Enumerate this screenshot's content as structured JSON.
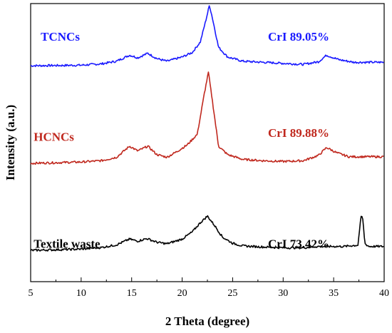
{
  "chart_data": {
    "type": "line",
    "xlabel": "2 Theta (degree)",
    "ylabel": "Intensity (a.u.)",
    "xlim": [
      5,
      40
    ],
    "xticks": [
      "5",
      "10",
      "15",
      "20",
      "25",
      "30",
      "35",
      "40"
    ],
    "y_axis_ticks": "none",
    "grid": false,
    "legend": "none (series labeled inline)",
    "series": [
      {
        "name": "TCNCs",
        "annotation": "CrI 89.05%",
        "color": "#1a1aff",
        "points": [
          [
            5,
            0.805
          ],
          [
            8,
            0.806
          ],
          [
            10,
            0.807
          ],
          [
            12,
            0.812
          ],
          [
            13.5,
            0.822
          ],
          [
            14.8,
            0.845
          ],
          [
            15.6,
            0.835
          ],
          [
            16.6,
            0.852
          ],
          [
            17.5,
            0.832
          ],
          [
            18.5,
            0.822
          ],
          [
            20,
            0.838
          ],
          [
            21,
            0.855
          ],
          [
            21.8,
            0.895
          ],
          [
            22.4,
            0.985
          ],
          [
            22.7,
            1.035
          ],
          [
            23.0,
            0.985
          ],
          [
            23.6,
            0.875
          ],
          [
            24.5,
            0.838
          ],
          [
            26,
            0.822
          ],
          [
            28,
            0.818
          ],
          [
            30,
            0.814
          ],
          [
            32,
            0.81
          ],
          [
            33.5,
            0.82
          ],
          [
            34.3,
            0.845
          ],
          [
            35.5,
            0.828
          ],
          [
            37,
            0.818
          ],
          [
            40,
            0.818
          ]
        ]
      },
      {
        "name": "HCNCs",
        "annotation": "CrI 89.88%",
        "color": "#c0281e",
        "points": [
          [
            5,
            0.435
          ],
          [
            8,
            0.438
          ],
          [
            10,
            0.44
          ],
          [
            12,
            0.445
          ],
          [
            13.5,
            0.458
          ],
          [
            14.8,
            0.5
          ],
          [
            15.6,
            0.482
          ],
          [
            16.6,
            0.5
          ],
          [
            17.5,
            0.468
          ],
          [
            18.5,
            0.458
          ],
          [
            19.5,
            0.48
          ],
          [
            20.5,
            0.505
          ],
          [
            21.5,
            0.545
          ],
          [
            22.2,
            0.7
          ],
          [
            22.6,
            0.78
          ],
          [
            23.0,
            0.67
          ],
          [
            23.6,
            0.5
          ],
          [
            24.5,
            0.468
          ],
          [
            26,
            0.45
          ],
          [
            28,
            0.445
          ],
          [
            30,
            0.442
          ],
          [
            32,
            0.445
          ],
          [
            33.5,
            0.465
          ],
          [
            34.3,
            0.495
          ],
          [
            35.3,
            0.475
          ],
          [
            36.5,
            0.46
          ],
          [
            40,
            0.46
          ]
        ]
      },
      {
        "name": "Textile waste",
        "annotation": "CrI 73.42%",
        "color": "#000000",
        "points": [
          [
            5,
            0.105
          ],
          [
            8,
            0.108
          ],
          [
            10,
            0.11
          ],
          [
            12,
            0.116
          ],
          [
            13.5,
            0.126
          ],
          [
            14.8,
            0.148
          ],
          [
            15.6,
            0.14
          ],
          [
            16.5,
            0.15
          ],
          [
            17.5,
            0.136
          ],
          [
            18.5,
            0.13
          ],
          [
            20,
            0.148
          ],
          [
            21,
            0.175
          ],
          [
            21.8,
            0.21
          ],
          [
            22.5,
            0.235
          ],
          [
            23.2,
            0.2
          ],
          [
            24,
            0.155
          ],
          [
            25,
            0.132
          ],
          [
            26,
            0.122
          ],
          [
            28,
            0.118
          ],
          [
            30,
            0.115
          ],
          [
            32,
            0.115
          ],
          [
            33.5,
            0.12
          ],
          [
            34.5,
            0.12
          ],
          [
            36,
            0.12
          ],
          [
            37.4,
            0.125
          ],
          [
            37.7,
            0.23
          ],
          [
            37.85,
            0.235
          ],
          [
            38.1,
            0.13
          ],
          [
            38.5,
            0.12
          ],
          [
            40,
            0.12
          ]
        ]
      }
    ]
  }
}
